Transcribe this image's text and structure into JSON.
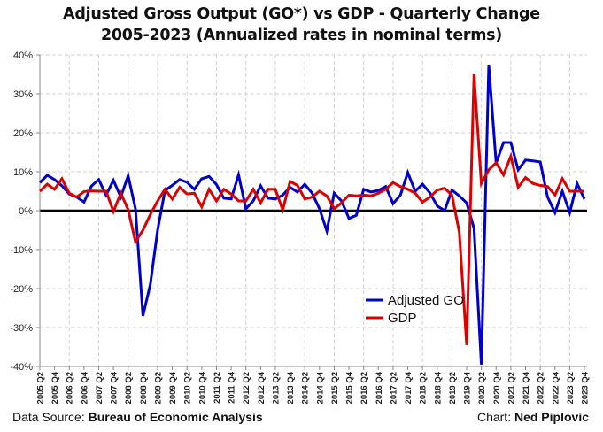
{
  "chart_data": {
    "type": "line",
    "title": "Adjusted Gross Output (GO*) vs GDP - Quarterly Change",
    "subtitle": "2005-2023 (Annualized rates in nominal terms)",
    "xlabel": "",
    "ylabel": "",
    "ylim": [
      -40,
      40
    ],
    "yticks": [
      40,
      30,
      20,
      10,
      0,
      -10,
      -20,
      -30,
      -40
    ],
    "ytick_labels": [
      "40%",
      "30%",
      "20%",
      "10%",
      "0%",
      "-10%",
      "-20%",
      "-30%",
      "-40%"
    ],
    "grid": true,
    "legend_position": "center-right",
    "x": [
      "2005 Q2",
      "2005 Q3",
      "2005 Q4",
      "2006 Q1",
      "2006 Q2",
      "2006 Q3",
      "2006 Q4",
      "2007 Q1",
      "2007 Q2",
      "2007 Q3",
      "2007 Q4",
      "2008 Q1",
      "2008 Q2",
      "2008 Q3",
      "2008 Q4",
      "2009 Q1",
      "2009 Q2",
      "2009 Q3",
      "2009 Q4",
      "2010 Q1",
      "2010 Q2",
      "2010 Q3",
      "2010 Q4",
      "2011 Q1",
      "2011 Q2",
      "2011 Q3",
      "2011 Q4",
      "2012 Q1",
      "2012 Q2",
      "2012 Q3",
      "2012 Q4",
      "2013 Q1",
      "2013 Q2",
      "2013 Q3",
      "2013 Q4",
      "2014 Q1",
      "2014 Q2",
      "2014 Q3",
      "2014 Q4",
      "2015 Q1",
      "2015 Q2",
      "2015 Q3",
      "2015 Q4",
      "2016 Q1",
      "2016 Q2",
      "2016 Q3",
      "2016 Q4",
      "2017 Q1",
      "2017 Q2",
      "2017 Q3",
      "2017 Q4",
      "2018 Q1",
      "2018 Q2",
      "2018 Q3",
      "2018 Q4",
      "2019 Q1",
      "2019 Q2",
      "2019 Q3",
      "2019 Q4",
      "2020 Q1",
      "2020 Q2",
      "2020 Q3",
      "2020 Q4",
      "2021 Q1",
      "2021 Q2",
      "2021 Q3",
      "2021 Q4",
      "2022 Q1",
      "2022 Q2",
      "2022 Q3",
      "2022 Q4",
      "2023 Q1",
      "2023 Q2",
      "2023 Q3",
      "2023 Q4"
    ],
    "xtick_labels": [
      "2005 Q2",
      "2005 Q4",
      "2006 Q2",
      "2006 Q4",
      "2007 Q2",
      "2007 Q4",
      "2008 Q2",
      "2008 Q4",
      "2009 Q2",
      "2009 Q4",
      "2010 Q2",
      "2010 Q4",
      "2011 Q2",
      "2011 Q4",
      "2012 Q2",
      "2012 Q4",
      "2013 Q2",
      "2013 Q4",
      "2014 Q2",
      "2014 Q4",
      "2015 Q2",
      "2015 Q4",
      "2016 Q2",
      "2016 Q4",
      "2017 Q2",
      "2017 Q4",
      "2018 Q2",
      "2018 Q4",
      "2019 Q2",
      "2019 Q4",
      "2020 Q2",
      "2020 Q4",
      "2021 Q2",
      "2021 Q4",
      "2022 Q2",
      "2022 Q4",
      "2023 Q2",
      "2023 Q4"
    ],
    "series": [
      {
        "name": "Adjusted GO",
        "color": "#0000cc",
        "values": [
          7.2,
          9.1,
          8.0,
          6.4,
          4.3,
          3.5,
          2.2,
          6.3,
          8.0,
          4.0,
          7.8,
          3.5,
          9.0,
          0.5,
          -27.0,
          -19.0,
          -5.0,
          5.2,
          6.5,
          8.0,
          7.3,
          5.5,
          8.2,
          8.8,
          6.7,
          3.2,
          3.0,
          9.2,
          0.5,
          2.5,
          6.4,
          3.2,
          3.0,
          4.0,
          6.0,
          4.8,
          6.8,
          4.5,
          0.5,
          -5.2,
          4.5,
          2.5,
          -2.0,
          -1.2,
          5.5,
          4.8,
          5.2,
          6.2,
          1.8,
          4.0,
          9.8,
          5.0,
          6.8,
          4.6,
          1.2,
          0.0,
          5.3,
          3.8,
          2.0,
          -4.5,
          -39.5,
          37.5,
          12.2,
          17.5,
          17.5,
          10.5,
          13.0,
          12.8,
          12.5,
          3.5,
          -0.5,
          5.0,
          -0.5,
          7.0,
          3.0
        ]
      },
      {
        "name": "GDP",
        "color": "#dd0000",
        "values": [
          5.0,
          6.8,
          5.5,
          8.2,
          4.5,
          3.5,
          4.9,
          5.1,
          5.0,
          5.0,
          -0.2,
          4.5,
          0.3,
          -8.0,
          -5.0,
          -1.0,
          2.5,
          5.5,
          3.0,
          6.0,
          4.3,
          4.5,
          1.0,
          5.5,
          2.5,
          5.5,
          4.3,
          2.5,
          2.5,
          5.5,
          2.0,
          5.5,
          5.5,
          0.2,
          7.5,
          6.5,
          3.0,
          3.5,
          5.0,
          3.8,
          0.5,
          2.0,
          4.0,
          3.8,
          4.0,
          3.8,
          4.5,
          5.5,
          7.2,
          6.2,
          5.5,
          4.5,
          2.2,
          3.5,
          5.3,
          5.8,
          4.0,
          -5.5,
          -34.5,
          35.0,
          7.0,
          10.5,
          12.3,
          9.2,
          14.0,
          6.0,
          8.5,
          7.0,
          6.5,
          6.2,
          4.0,
          8.2,
          5.0,
          5.0,
          5.0
        ]
      }
    ]
  },
  "footer": {
    "source_label": "Data Source: ",
    "source_value": "Bureau of Economic Analysis",
    "credit_label": "Chart: ",
    "credit_value": "Ned Piplovic"
  }
}
